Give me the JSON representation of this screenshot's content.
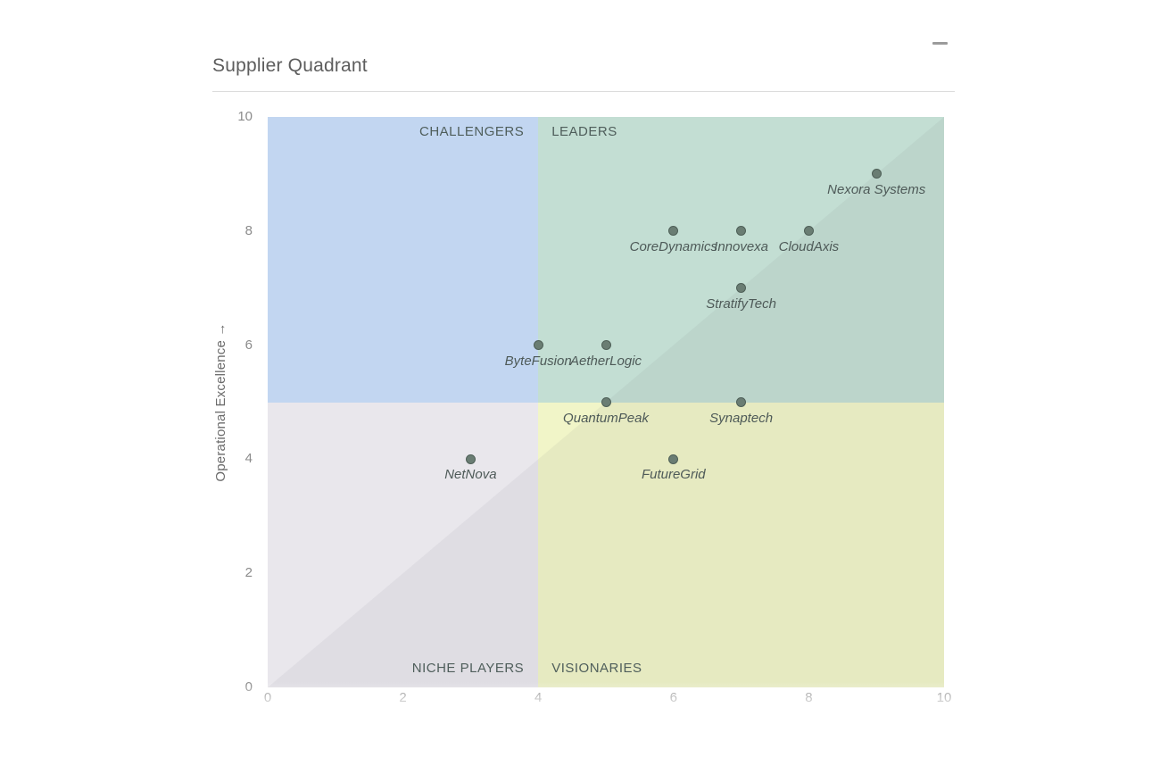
{
  "header": {
    "title": "Supplier Quadrant"
  },
  "window": {
    "minimize_icon": "minimize-dash"
  },
  "chart_data": {
    "type": "scatter",
    "title": "Supplier Quadrant",
    "xlabel": "",
    "ylabel": "Operational Excellence →",
    "xlim": [
      0,
      10
    ],
    "ylim": [
      0,
      10
    ],
    "x_ticks": [
      "0",
      "2",
      "4",
      "6",
      "8",
      "10"
    ],
    "x_tick_values": [
      0,
      2,
      4,
      6,
      8,
      10
    ],
    "y_ticks": [
      "0",
      "2",
      "4",
      "6",
      "8",
      "10"
    ],
    "y_tick_values": [
      0,
      2,
      4,
      6,
      8,
      10
    ],
    "grid": false,
    "legend": "none",
    "quadrant_split": {
      "x": 4,
      "y": 5
    },
    "diagonal": "bottom-left to top-right, lower-right half slightly darker",
    "quadrants": [
      {
        "name": "CHALLENGERS",
        "position": "top-left",
        "color": "#c2d6f1"
      },
      {
        "name": "LEADERS",
        "position": "top-right",
        "color": "#c3ded3"
      },
      {
        "name": "NICHE PLAYERS",
        "position": "bottom-left",
        "color": "#e9e7ec"
      },
      {
        "name": "VISIONARIES",
        "position": "bottom-right",
        "color": "#f1f5c8"
      }
    ],
    "points": [
      {
        "label": "Nexora Systems",
        "x": 9,
        "y": 9
      },
      {
        "label": "CoreDynamics",
        "x": 6,
        "y": 8
      },
      {
        "label": "Innovexa",
        "x": 7,
        "y": 8
      },
      {
        "label": "CloudAxis",
        "x": 8,
        "y": 8
      },
      {
        "label": "StratifyTech",
        "x": 7,
        "y": 7
      },
      {
        "label": "ByteFusion",
        "x": 4,
        "y": 6
      },
      {
        "label": "AetherLogic",
        "x": 5,
        "y": 6
      },
      {
        "label": "QuantumPeak",
        "x": 5,
        "y": 5
      },
      {
        "label": "Synaptech",
        "x": 7,
        "y": 5
      },
      {
        "label": "NetNova",
        "x": 3,
        "y": 4
      },
      {
        "label": "FutureGrid",
        "x": 6,
        "y": 4
      }
    ],
    "colors": {
      "point_fill": "#6a7d73",
      "point_border": "#4e5f57",
      "point_label": "#4e5a58",
      "quadrant_label": "#4f5e5b",
      "tick_label": "#8b8b8b",
      "axis_title": "#6b6b6b",
      "title": "#5d5d5d"
    }
  }
}
